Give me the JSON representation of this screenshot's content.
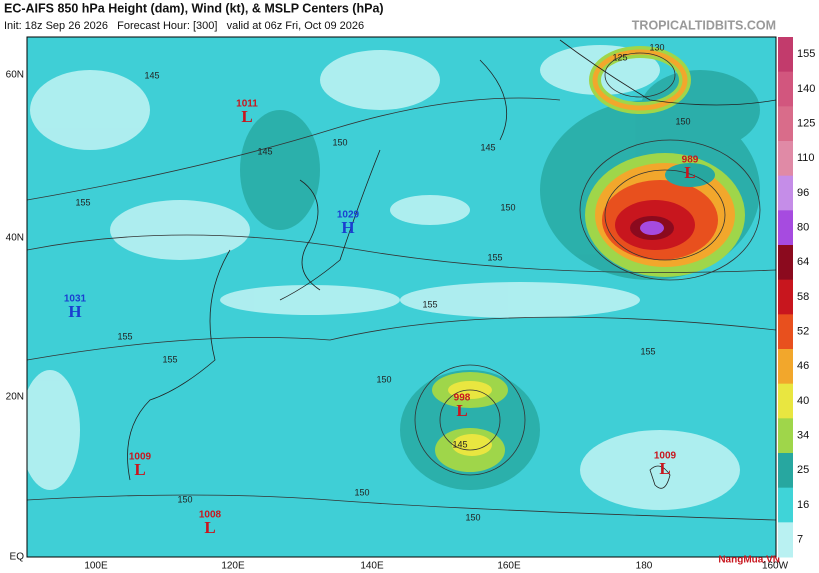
{
  "header": {
    "title": "EC-AIFS 850 hPa Height (dam), Wind (kt), & MSLP Centers (hPa)",
    "subtitle": "Init: 18z Sep 26 2026   Forecast Hour: [300]   valid at 06z Fri, Oct 09 2026",
    "brand": "TROPICALTIDBITS.COM"
  },
  "lat_labels": [
    "60N",
    "40N",
    "20N",
    "EQ"
  ],
  "lon_labels": [
    "100E",
    "120E",
    "140E",
    "160E",
    "180",
    "160W"
  ],
  "colorbar": [
    {
      "value": 155,
      "color": "#c23b6c"
    },
    {
      "value": 140,
      "color": "#d2567e"
    },
    {
      "value": 125,
      "color": "#d96c8a"
    },
    {
      "value": 110,
      "color": "#e08aa6"
    },
    {
      "value": 96,
      "color": "#c58de8"
    },
    {
      "value": 80,
      "color": "#a64be0"
    },
    {
      "value": 64,
      "color": "#8b0a1e"
    },
    {
      "value": 58,
      "color": "#c8161e"
    },
    {
      "value": 52,
      "color": "#e8501e"
    },
    {
      "value": 46,
      "color": "#f2a72c"
    },
    {
      "value": 40,
      "color": "#e9e640"
    },
    {
      "value": 34,
      "color": "#9fd64a"
    },
    {
      "value": 25,
      "color": "#27a7a0"
    },
    {
      "value": 16,
      "color": "#3fd4d8"
    },
    {
      "value": 7,
      "color": "#b9f1f2"
    }
  ],
  "centers": [
    {
      "pressure": "1011",
      "letter": "L"
    },
    {
      "pressure": "1029",
      "letter": "H"
    },
    {
      "pressure": "1031",
      "letter": "H"
    },
    {
      "pressure": "989",
      "letter": "L"
    },
    {
      "pressure": "998",
      "letter": "L"
    },
    {
      "pressure": "1009",
      "letter": "L"
    },
    {
      "pressure": "1009",
      "letter": "L"
    },
    {
      "pressure": "1008",
      "letter": "L"
    }
  ],
  "contour_labels": [
    "125",
    "130",
    "145",
    "145",
    "150",
    "145",
    "150",
    "155",
    "155",
    "155",
    "155",
    "155",
    "150",
    "145",
    "150",
    "150",
    "150",
    "155",
    "150"
  ],
  "watermark": "NangMua.VN"
}
